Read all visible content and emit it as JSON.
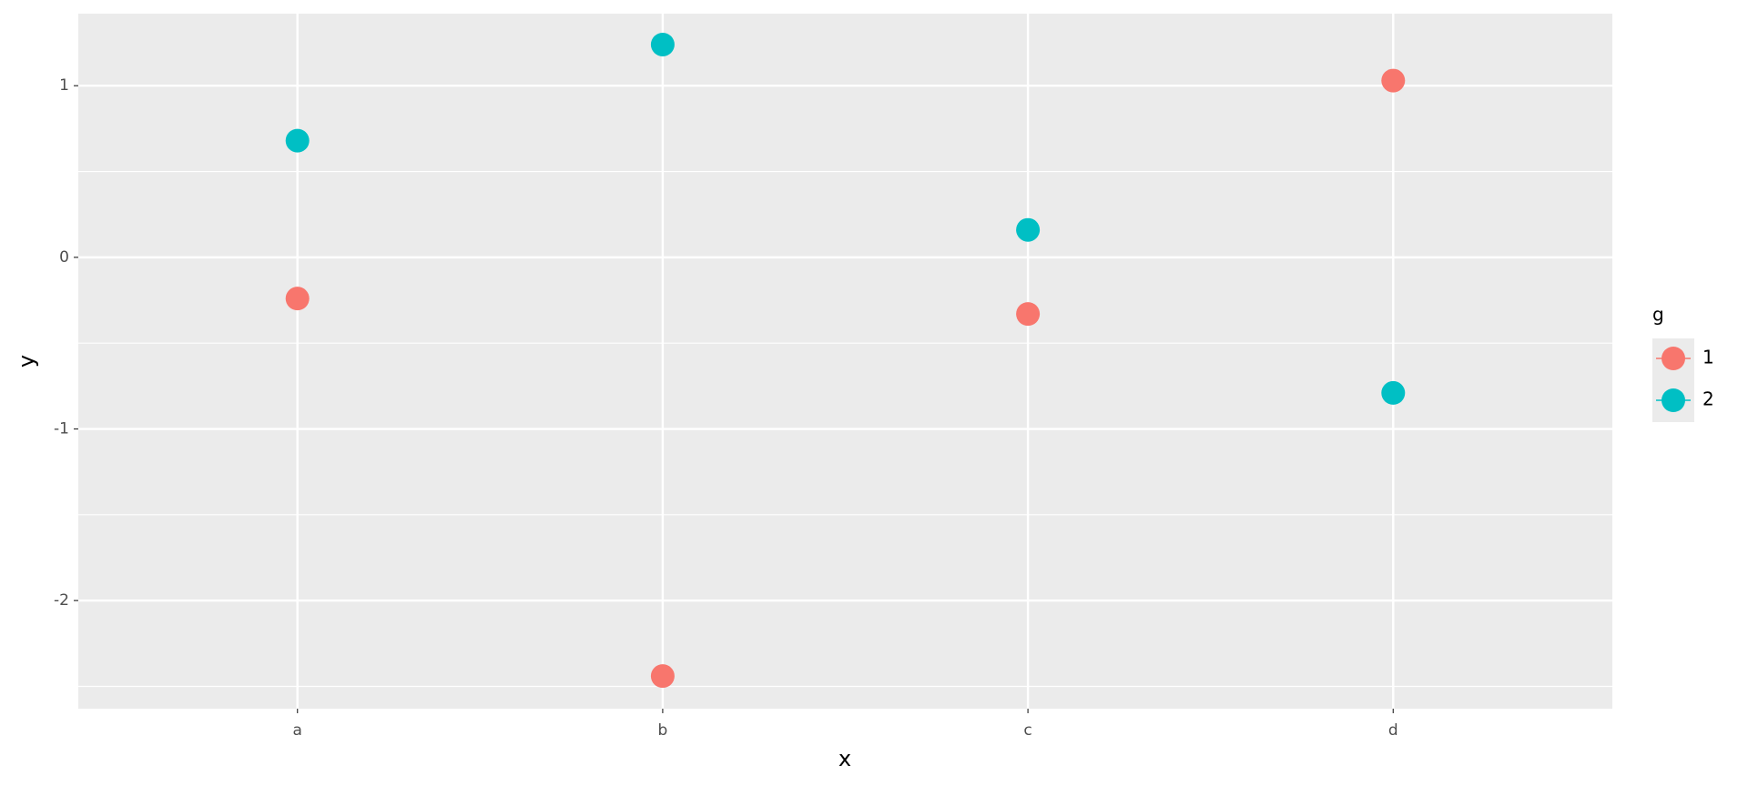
{
  "chart_data": {
    "type": "scatter",
    "x_label": "x",
    "y_label": "y",
    "categories": [
      "a",
      "b",
      "c",
      "d"
    ],
    "legend_title": "g",
    "series": [
      {
        "name": "1",
        "color": "#F8766D",
        "values": [
          -0.24,
          -2.44,
          -0.33,
          1.03
        ]
      },
      {
        "name": "2",
        "color": "#00BFC4",
        "values": [
          0.68,
          1.24,
          0.16,
          -0.79
        ]
      }
    ],
    "ylim": [
      -2.63,
      1.42
    ],
    "yticks": [
      -2,
      -1,
      0,
      1
    ],
    "minor_yticks": [
      -2.5,
      -1.5,
      -0.5,
      0.5
    ],
    "grid": true,
    "legend": "right"
  }
}
